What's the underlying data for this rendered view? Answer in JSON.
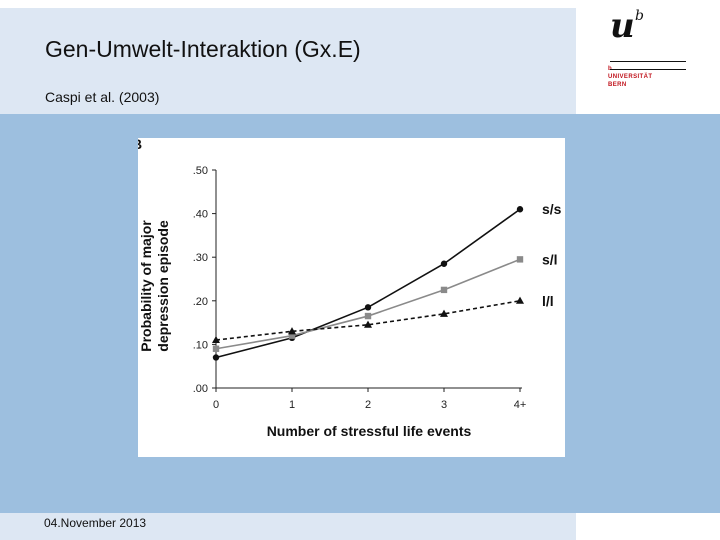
{
  "slide": {
    "title": "Gen-Umwelt-Interaktion (Gx.E)",
    "subtitle": "Caspi et al. (2003)",
    "footer_date": "04.November 2013"
  },
  "logo": {
    "letter_u": "u",
    "letter_b": "b",
    "line1": "b",
    "line2": "UNIVERSITÄT",
    "line3": "BERN"
  },
  "colors": {
    "header_band": "#dde7f3",
    "body_band": "#9dbfdf",
    "logo_red": "#c0121b"
  },
  "chart_data": {
    "type": "line",
    "panel_letter": "B",
    "xlabel": "Number of stressful life events",
    "ylabel_line1": "Probability of major",
    "ylabel_line2": "depression episode",
    "x_tick_labels": [
      "0",
      "1",
      "2",
      "3",
      "4+"
    ],
    "y_ticks": [
      0.0,
      0.1,
      0.2,
      0.3,
      0.4,
      0.5
    ],
    "y_tick_labels": [
      ".00",
      ".10",
      ".20",
      ".30",
      ".40",
      ".50"
    ],
    "ylim": [
      0,
      0.5
    ],
    "grid": false,
    "series": [
      {
        "name": "s/s",
        "values": [
          0.07,
          0.115,
          0.185,
          0.285,
          0.41
        ],
        "color": "#111111",
        "marker": "circle",
        "dashed": false
      },
      {
        "name": "s/l",
        "values": [
          0.09,
          0.12,
          0.165,
          0.225,
          0.295
        ],
        "color": "#8a8a8a",
        "marker": "square",
        "dashed": false
      },
      {
        "name": "l/l",
        "values": [
          0.11,
          0.13,
          0.145,
          0.17,
          0.2
        ],
        "color": "#111111",
        "marker": "triangle",
        "dashed": true
      }
    ]
  }
}
